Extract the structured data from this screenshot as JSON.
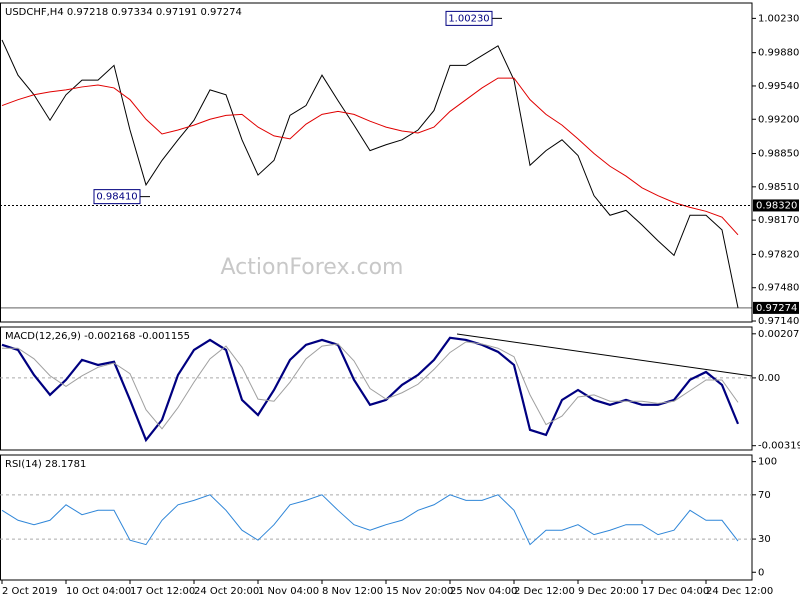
{
  "chart_data": [
    {
      "type": "line",
      "title": "USDCHF,H4  0.97218 0.97334 0.97191 0.97274",
      "categories": [
        "2 Oct 2019",
        null,
        null,
        null,
        "10 Oct 04:00",
        null,
        null,
        null,
        "17 Oct 12:00",
        null,
        null,
        null,
        "24 Oct 20:00",
        null,
        null,
        null,
        "1 Nov 04:00",
        null,
        null,
        null,
        "8 Nov 12:00",
        null,
        null,
        null,
        "15 Nov 20:00",
        null,
        null,
        null,
        "25 Nov 04:00",
        null,
        null,
        null,
        "2 Dec 12:00",
        null,
        null,
        null,
        "9 Dec 20:00",
        null,
        null,
        null,
        "17 Dec 04:00",
        null,
        null,
        null,
        "24 Dec 12:00",
        null,
        null
      ],
      "series": [
        {
          "name": "USDCHF",
          "color": "#000000",
          "values": [
            1.0001,
            0.9965,
            0.9945,
            0.9919,
            0.9945,
            0.996,
            0.996,
            0.9975,
            0.9909,
            0.9853,
            0.9878,
            0.9899,
            0.9919,
            0.995,
            0.9945,
            0.9899,
            0.9863,
            0.9878,
            0.9924,
            0.9934,
            0.9965,
            0.9939,
            0.9914,
            0.9888,
            0.9894,
            0.9899,
            0.9909,
            0.9929,
            0.9975,
            0.9975,
            0.9985,
            0.9995,
            0.996,
            0.9873,
            0.9888,
            0.9899,
            0.9883,
            0.9842,
            0.9822,
            0.9827,
            0.9812,
            0.9796,
            0.9781,
            0.9822,
            0.9822,
            0.9807,
            0.97274
          ]
        },
        {
          "name": "MA",
          "color": "#e00000",
          "values": [
            0.9934,
            0.994,
            0.9945,
            0.9948,
            0.995,
            0.9953,
            0.9955,
            0.9952,
            0.994,
            0.992,
            0.9905,
            0.9909,
            0.9914,
            0.992,
            0.9924,
            0.9925,
            0.9912,
            0.9903,
            0.99,
            0.9915,
            0.9925,
            0.9928,
            0.9925,
            0.9918,
            0.9912,
            0.9908,
            0.9906,
            0.9912,
            0.9928,
            0.994,
            0.9952,
            0.9962,
            0.9962,
            0.994,
            0.9925,
            0.9914,
            0.99,
            0.9885,
            0.9872,
            0.9862,
            0.985,
            0.9842,
            0.9835,
            0.983,
            0.9826,
            0.982,
            0.9802
          ]
        }
      ],
      "ylim": [
        0.9713,
        1.00387
      ],
      "yticks": [
        {
          "value": 1.0023,
          "label": "1.00230"
        },
        {
          "value": 0.9988,
          "label": "0.99880"
        },
        {
          "value": 0.9954,
          "label": "0.99540"
        },
        {
          "value": 0.992,
          "label": "0.99200"
        },
        {
          "value": 0.9885,
          "label": "0.98850"
        },
        {
          "value": 0.9851,
          "label": "0.98510"
        },
        {
          "value": 0.9817,
          "label": "0.98170"
        },
        {
          "value": 0.9782,
          "label": "0.97820"
        },
        {
          "value": 0.9748,
          "label": "0.97480"
        },
        {
          "value": 0.9714,
          "label": "0.97140"
        }
      ],
      "levels": [
        {
          "value": 0.9832,
          "label": "0.98320"
        },
        {
          "value": 0.97274,
          "label": "0.97274"
        }
      ],
      "annotations": [
        {
          "x": 31,
          "value": 1.0023,
          "label": "1.00230"
        },
        {
          "x": 9,
          "value": 0.9841,
          "label": "0.98410"
        }
      ],
      "watermark": "ActionForex.com"
    },
    {
      "type": "line",
      "title": "MACD(12,26,9) -0.002168 -0.001155",
      "series": [
        {
          "name": "MACD",
          "color": "#000080",
          "values": [
            0.00156,
            0.00132,
            0.00014,
            -0.0008,
            -9e-05,
            0.00085,
            0.00061,
            0.00076,
            -0.00104,
            -0.00293,
            -0.00198,
            0.00014,
            0.00132,
            0.00179,
            0.00132,
            -0.00104,
            -0.00175,
            -0.00057,
            0.00085,
            0.00156,
            0.00179,
            0.00156,
            -9e-05,
            -0.00127,
            -0.00104,
            -0.00033,
            0.00014,
            0.00085,
            0.00189,
            0.00179,
            0.00156,
            0.00123,
            0.00061,
            -0.00245,
            -0.00269,
            -0.00104,
            -0.00057,
            -0.00104,
            -0.00127,
            -0.00104,
            -0.00127,
            -0.00127,
            -0.00104,
            -9e-05,
            0.00028,
            -0.00033,
            -0.002168
          ]
        },
        {
          "name": "Signal",
          "color": "#a0a0a0",
          "values": [
            0.0014,
            0.0014,
            0.0009,
            0.0001,
            -0.0004,
            0.0001,
            0.0005,
            0.0007,
            0.0002,
            -0.0015,
            -0.0024,
            -0.0014,
            -0.0002,
            0.0009,
            0.0015,
            0.0005,
            -0.001,
            -0.0011,
            -0.0002,
            0.0009,
            0.0015,
            0.0016,
            0.0008,
            -0.0005,
            -0.001,
            -0.0007,
            -0.0003,
            0.0004,
            0.0012,
            0.0017,
            0.0016,
            0.0014,
            0.001,
            -0.0008,
            -0.0022,
            -0.0018,
            -0.0009,
            -0.0008,
            -0.0011,
            -0.0011,
            -0.0011,
            -0.0012,
            -0.0011,
            -0.0006,
            -0.0001,
            -0.0001,
            -0.001155
          ]
        }
      ],
      "ylim": [
        -0.0034,
        0.0024
      ],
      "yticks": [
        0.002079,
        {
          "value": 0,
          "label": "0.00"
        },
        -0.003197
      ]
    },
    {
      "type": "line",
      "title": "RSI(14) 28.1781",
      "series": [
        {
          "name": "RSI",
          "color": "#2f86d8",
          "values": [
            56,
            47,
            43,
            47,
            61,
            52,
            56,
            56,
            29,
            25,
            47,
            61,
            65,
            70,
            56,
            38,
            29,
            43,
            61,
            65,
            70,
            56,
            43,
            38,
            43,
            47,
            56,
            61,
            70,
            65,
            65,
            70,
            56,
            25,
            38,
            38,
            43,
            34,
            38,
            43,
            43,
            34,
            38,
            56,
            47,
            47,
            28.1781
          ]
        }
      ],
      "ylim": [
        -7,
        106
      ],
      "yticks": [
        100,
        70,
        30,
        0
      ],
      "grid_levels": [
        70,
        30
      ]
    }
  ]
}
